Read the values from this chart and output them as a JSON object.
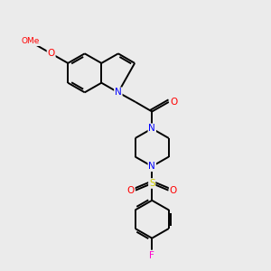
{
  "background_color": "#ebebeb",
  "bond_color": "#000000",
  "atom_colors": {
    "N": "#0000ff",
    "O": "#ff0000",
    "F": "#ff00cc",
    "S": "#cccc00",
    "C": "#000000"
  },
  "line_width": 1.4,
  "figsize": [
    3.0,
    3.0
  ],
  "dpi": 100
}
